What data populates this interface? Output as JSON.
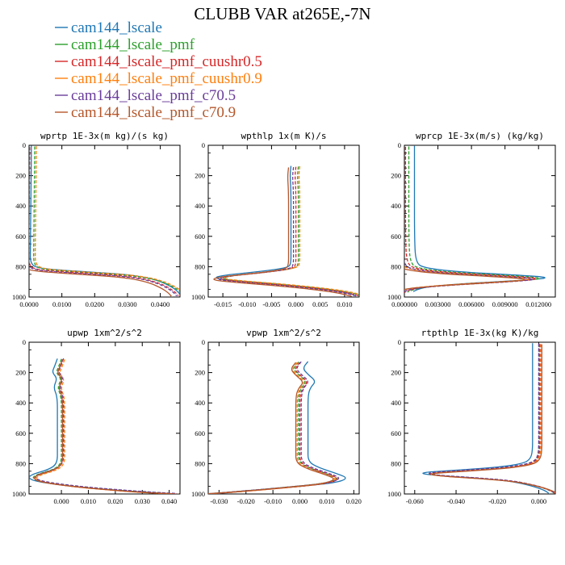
{
  "chart_data": {
    "title": "CLUBB VAR at265E,-7N",
    "legend": {
      "placement": "top-left",
      "series": [
        {
          "name": "cam144_lscale",
          "color": "#1f77b4",
          "dash": "solid"
        },
        {
          "name": "cam144_lscale_pmf",
          "color": "#2ca02c",
          "dash": "dashed"
        },
        {
          "name": "cam144_lscale_pmf_cuushr0.5",
          "color": "#d62728",
          "dash": "dashed"
        },
        {
          "name": "cam144_lscale_pmf_cuushr0.9",
          "color": "#ff7f0e",
          "dash": "dashed"
        },
        {
          "name": "cam144_lscale_pmf_c70.5",
          "color": "#6a3d9a",
          "dash": "dashed"
        },
        {
          "name": "cam144_lscale_pmf_c70.9",
          "color": "#b5572b",
          "dash": "solid"
        }
      ]
    },
    "panels": [
      {
        "type": "line",
        "title": "wprtp  1E-3x(m kg)/(s kg)",
        "xlim": [
          0,
          0.046
        ],
        "ylim": [
          1000,
          0
        ],
        "xticks": [
          0,
          0.01,
          0.02,
          0.03,
          0.04
        ],
        "xtick_labels": [
          "0.0000",
          "0.0100",
          "0.0200",
          "0.0300",
          "0.0400"
        ],
        "yticks": [
          0,
          200,
          400,
          600,
          800,
          1000
        ],
        "base_profile": [
          [
            0.0007,
            10
          ],
          [
            0.0007,
            100
          ],
          [
            0.0006,
            300
          ],
          [
            0.0005,
            500
          ],
          [
            0.0004,
            700
          ],
          [
            0.0004,
            780
          ],
          [
            0.002,
            815
          ],
          [
            0.009,
            830
          ],
          [
            0.02,
            845
          ],
          [
            0.03,
            860
          ],
          [
            0.036,
            880
          ],
          [
            0.04,
            905
          ],
          [
            0.043,
            935
          ],
          [
            0.045,
            965
          ],
          [
            0.046,
            990
          ]
        ],
        "series_offsets": [
          [
            0,
            -8
          ],
          [
            0.001,
            -2
          ],
          [
            -0.0005,
            2
          ],
          [
            0.0015,
            -4
          ],
          [
            -0.001,
            4
          ],
          [
            -0.0025,
            8
          ]
        ]
      },
      {
        "type": "line",
        "title": "wpthlp  1x(m K)/s",
        "xlim": [
          -0.018,
          0.013
        ],
        "ylim": [
          1000,
          0
        ],
        "xticks": [
          -0.015,
          -0.01,
          -0.005,
          0,
          0.005,
          0.01
        ],
        "xtick_labels": [
          "-0.015",
          "-0.010",
          "-0.005",
          "0.000",
          "0.005",
          "0.010"
        ],
        "yticks": [
          0,
          200,
          400,
          600,
          800,
          1000
        ],
        "base_profile": [
          [
            0.0,
            140
          ],
          [
            -0.0002,
            200
          ],
          [
            0.0,
            300
          ],
          [
            0.0,
            500
          ],
          [
            0.0,
            700
          ],
          [
            0.0,
            780
          ],
          [
            -0.0005,
            810
          ],
          [
            -0.006,
            835
          ],
          [
            -0.014,
            860
          ],
          [
            -0.016,
            880
          ],
          [
            -0.012,
            895
          ],
          [
            -0.004,
            915
          ],
          [
            0.004,
            940
          ],
          [
            0.01,
            965
          ],
          [
            0.013,
            990
          ]
        ],
        "series_offsets": [
          [
            -0.001,
            -4
          ],
          [
            0.0005,
            0
          ],
          [
            0.0,
            2
          ],
          [
            0.0008,
            -2
          ],
          [
            -0.0005,
            4
          ],
          [
            -0.0015,
            6
          ]
        ]
      },
      {
        "type": "line",
        "title": "wprcp  1E-3x(m/s) (kg/kg)",
        "xlim": [
          0,
          0.0135
        ],
        "ylim": [
          1000,
          0
        ],
        "xticks": [
          0,
          0.003,
          0.006,
          0.009,
          0.012
        ],
        "xtick_labels": [
          "0.000000",
          "0.003000",
          "0.006000",
          "0.009000",
          "0.012000"
        ],
        "yticks": [
          0,
          200,
          400,
          600,
          800,
          1000
        ],
        "base_profile": [
          [
            0.0001,
            10
          ],
          [
            0.0001,
            300
          ],
          [
            0.0001,
            600
          ],
          [
            0.0002,
            780
          ],
          [
            0.001,
            815
          ],
          [
            0.004,
            840
          ],
          [
            0.009,
            860
          ],
          [
            0.0125,
            878
          ],
          [
            0.01,
            895
          ],
          [
            0.005,
            915
          ],
          [
            0.0015,
            935
          ],
          [
            0.0004,
            955
          ],
          [
            0.0,
            970
          ]
        ],
        "series_offsets": [
          [
            0.0008,
            -6
          ],
          [
            0.0003,
            -2
          ],
          [
            0.0,
            0
          ],
          [
            -0.0006,
            2
          ],
          [
            -0.0003,
            4
          ],
          [
            -0.001,
            6
          ]
        ]
      },
      {
        "type": "line",
        "title": "upwp  1xm^2/s^2",
        "xlim": [
          -0.012,
          0.044
        ],
        "ylim": [
          1000,
          0
        ],
        "xticks": [
          0,
          0.01,
          0.02,
          0.03,
          0.04
        ],
        "xtick_labels": [
          "0.000",
          "0.010",
          "0.020",
          "0.030",
          "0.040"
        ],
        "yticks": [
          0,
          200,
          400,
          600,
          800,
          1000
        ],
        "base_profile": [
          [
            0.0,
            110
          ],
          [
            -0.001,
            160
          ],
          [
            -0.002,
            200
          ],
          [
            0.0,
            240
          ],
          [
            -0.0015,
            300
          ],
          [
            0.0,
            360
          ],
          [
            0.0,
            500
          ],
          [
            0.0,
            700
          ],
          [
            0.0,
            800
          ],
          [
            -0.003,
            840
          ],
          [
            -0.009,
            870
          ],
          [
            -0.011,
            895
          ],
          [
            -0.008,
            920
          ],
          [
            0.004,
            950
          ],
          [
            0.02,
            975
          ],
          [
            0.032,
            990
          ],
          [
            0.042,
            1000
          ]
        ],
        "series_offsets": [
          [
            -0.0015,
            -2
          ],
          [
            0.0,
            0
          ],
          [
            0.0005,
            3
          ],
          [
            0.0012,
            4
          ],
          [
            0.0008,
            -3
          ],
          [
            0.0004,
            2
          ]
        ]
      },
      {
        "type": "line",
        "title": "vpwp  1xm^2/s^2",
        "xlim": [
          -0.034,
          0.022
        ],
        "ylim": [
          1000,
          0
        ],
        "xticks": [
          -0.03,
          -0.02,
          -0.01,
          0,
          0.01,
          0.02
        ],
        "xtick_labels": [
          "-0.030",
          "-0.020",
          "-0.010",
          "0.000",
          "0.010",
          "0.020"
        ],
        "yticks": [
          0,
          200,
          400,
          600,
          800,
          1000
        ],
        "base_profile": [
          [
            0.0,
            130
          ],
          [
            -0.002,
            175
          ],
          [
            0.0,
            215
          ],
          [
            0.003,
            260
          ],
          [
            0.001,
            300
          ],
          [
            0.0,
            350
          ],
          [
            0.0,
            500
          ],
          [
            0.0,
            700
          ],
          [
            0.0,
            790
          ],
          [
            0.004,
            830
          ],
          [
            0.011,
            870
          ],
          [
            0.015,
            900
          ],
          [
            0.01,
            930
          ],
          [
            -0.004,
            955
          ],
          [
            -0.02,
            980
          ],
          [
            -0.034,
            1000
          ]
        ],
        "series_offsets": [
          [
            0.003,
            -3
          ],
          [
            -0.0005,
            0
          ],
          [
            0.0,
            2
          ],
          [
            -0.001,
            4
          ],
          [
            0.0005,
            -2
          ],
          [
            -0.0015,
            3
          ]
        ]
      },
      {
        "type": "line",
        "title": "rtpthlp  1E-3x(kg K)/kg",
        "xlim": [
          -0.065,
          0.008
        ],
        "ylim": [
          1000,
          0
        ],
        "xticks": [
          -0.06,
          -0.04,
          -0.02,
          0
        ],
        "xtick_labels": [
          "-0.060",
          "-0.040",
          "-0.020",
          "0.000"
        ],
        "yticks": [
          0,
          200,
          400,
          600,
          800,
          1000
        ],
        "base_profile": [
          [
            0.0,
            10
          ],
          [
            0.0,
            300
          ],
          [
            0.0,
            600
          ],
          [
            0.0,
            720
          ],
          [
            -0.001,
            770
          ],
          [
            -0.004,
            800
          ],
          [
            -0.015,
            825
          ],
          [
            -0.035,
            845
          ],
          [
            -0.055,
            862
          ],
          [
            -0.05,
            878
          ],
          [
            -0.03,
            895
          ],
          [
            -0.012,
            915
          ],
          [
            0.0,
            950
          ],
          [
            0.006,
            980
          ],
          [
            0.008,
            1000
          ]
        ],
        "series_offsets": [
          [
            -0.003,
            -3
          ],
          [
            0.0,
            0
          ],
          [
            0.0005,
            2
          ],
          [
            0.001,
            3
          ],
          [
            0.0,
            -2
          ],
          [
            0.0015,
            4
          ]
        ]
      }
    ]
  }
}
